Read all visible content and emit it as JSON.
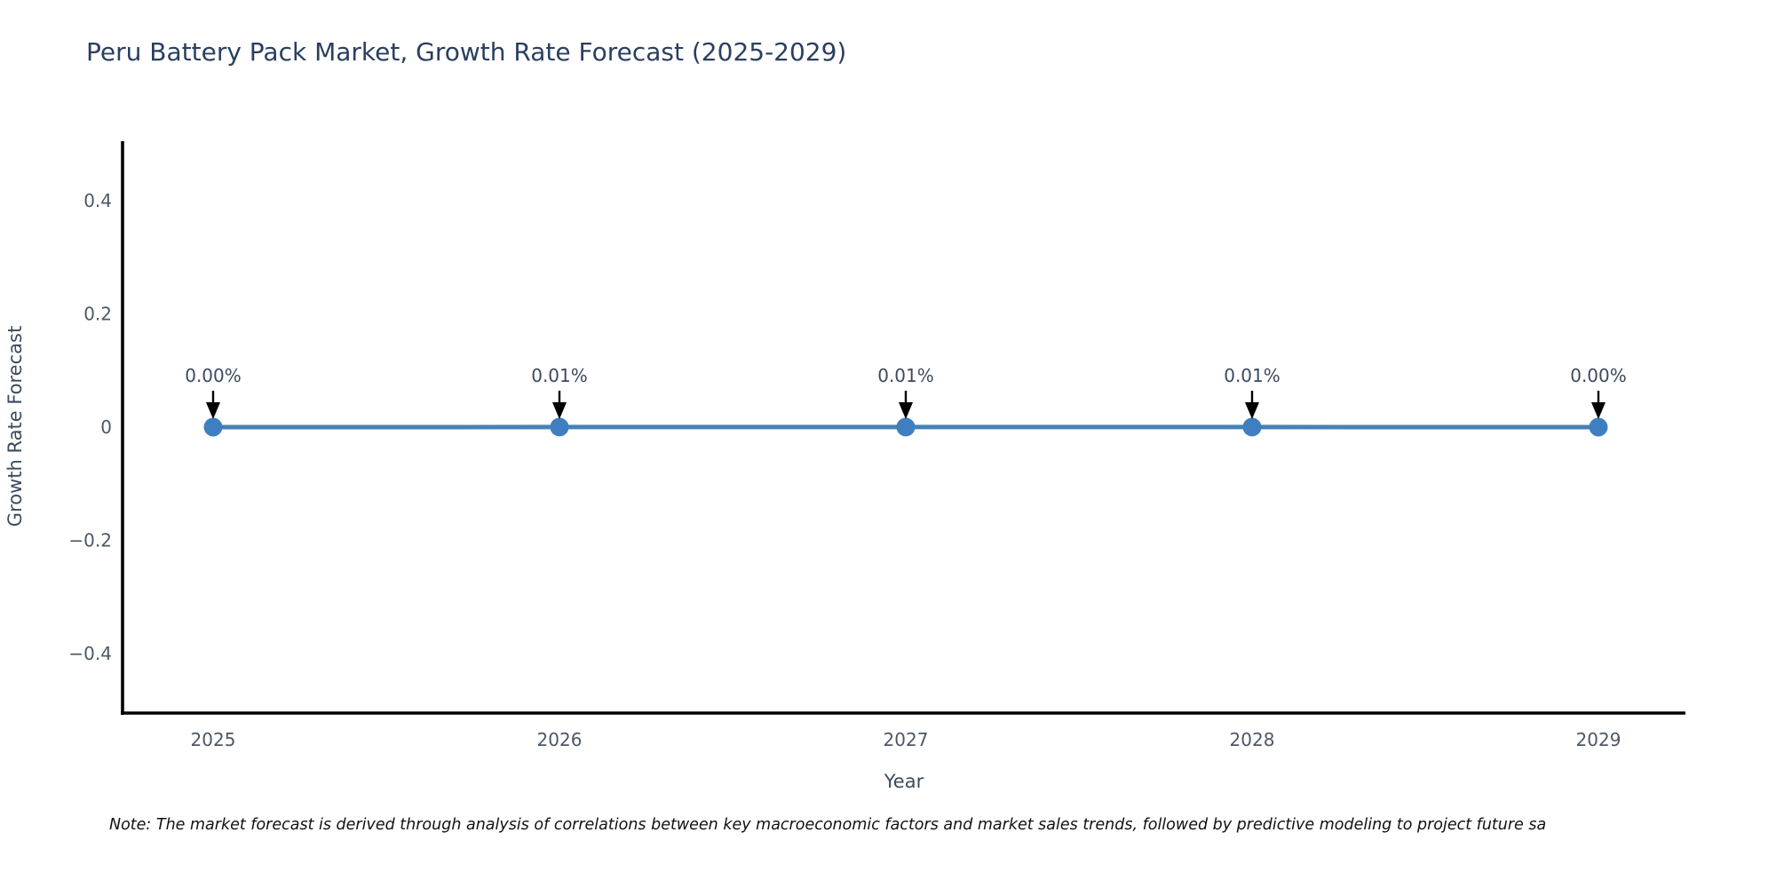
{
  "chart_data": {
    "type": "line",
    "title": "Peru Battery Pack Market, Growth Rate Forecast (2025-2029)",
    "xlabel": "Year",
    "ylabel": "Growth Rate Forecast",
    "x": [
      2025,
      2026,
      2027,
      2028,
      2029
    ],
    "values": [
      0.0,
      0.0001,
      0.0001,
      0.0001,
      0.0
    ],
    "point_labels": [
      "0.00%",
      "0.01%",
      "0.01%",
      "0.01%",
      "0.00%"
    ],
    "xticks": [
      2025,
      2026,
      2027,
      2028,
      2029
    ],
    "xtick_labels": [
      "2025",
      "2026",
      "2027",
      "2028",
      "2029"
    ],
    "yticks": [
      0.4,
      0.2,
      0,
      -0.2,
      -0.4
    ],
    "ytick_labels": [
      "0.4",
      "0.2",
      "0",
      "−0.2",
      "−0.4"
    ],
    "ylim": [
      -0.5,
      0.5
    ],
    "grid": false,
    "legend": "none",
    "colors": {
      "line": "#4682b4",
      "marker": "#3f7fc1",
      "arrow": "#000000",
      "axis": "#000000",
      "title_text": "#2a3f5f"
    }
  },
  "note": {
    "text": "Note: The market forecast is derived through analysis of correlations between key macroeconomic factors and market sales trends, followed by predictive modeling to project future sa"
  }
}
